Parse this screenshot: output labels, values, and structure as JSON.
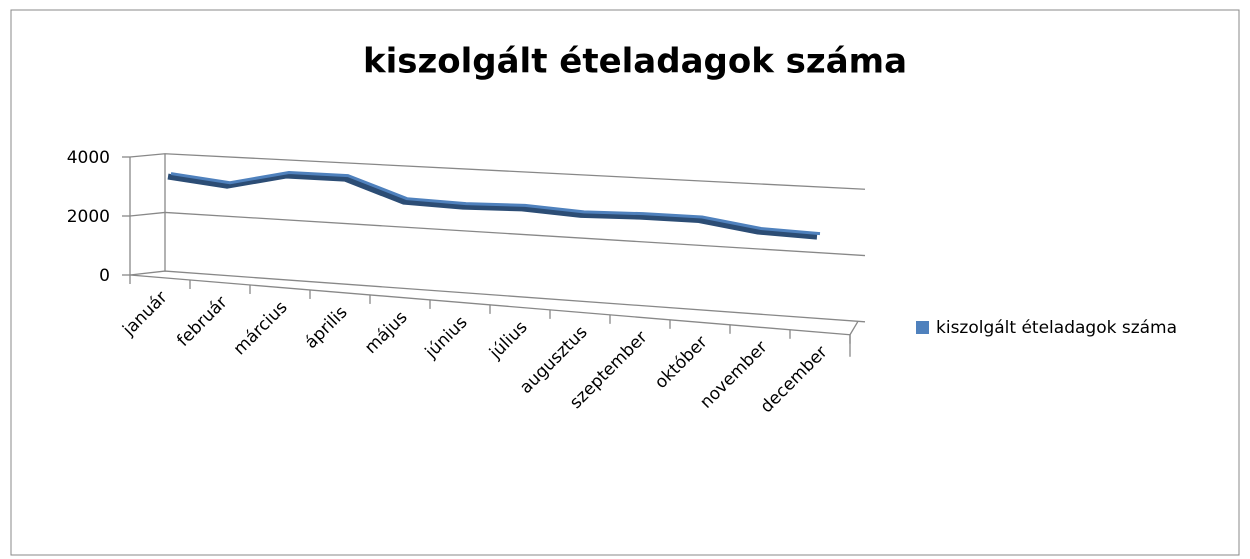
{
  "chart_data": {
    "type": "line",
    "title": "kiszolgált ételadagok száma",
    "categories": [
      "január",
      "február",
      "március",
      "április",
      "május",
      "június",
      "július",
      "augusztus",
      "szeptember",
      "október",
      "november",
      "december"
    ],
    "series": [
      {
        "name": "kiszolgált ételadagok száma",
        "color": "#4f81bd",
        "values": [
          3300,
          3100,
          3550,
          3550,
          2900,
          2850,
          2900,
          2800,
          2850,
          2850,
          2600,
          2550
        ]
      }
    ],
    "ylim": [
      0,
      4000
    ],
    "yticks": [
      0,
      2000,
      4000
    ],
    "grid": true,
    "legend": "right"
  }
}
